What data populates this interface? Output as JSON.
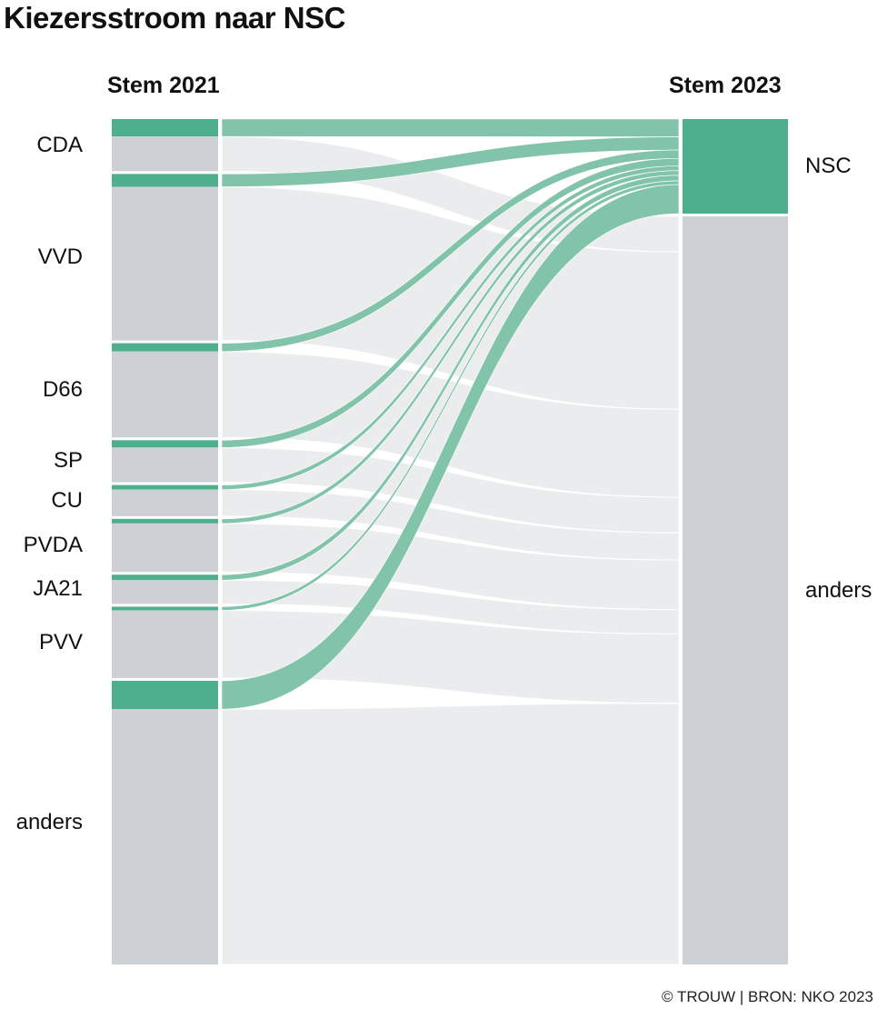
{
  "title": "Kiezersstroom naar NSC",
  "credit": "© TROUW | BRON: NKO 2023",
  "chart_data": {
    "type": "sankey",
    "source_column_label": "Stem 2021",
    "target_column_label": "Stem 2023",
    "sources": [
      {
        "name": "CDA",
        "to_nsc": 19,
        "to_anders": 38
      },
      {
        "name": "VVD",
        "to_nsc": 14,
        "to_anders": 168
      },
      {
        "name": "D66",
        "to_nsc": 9,
        "to_anders": 94
      },
      {
        "name": "SP",
        "to_nsc": 8,
        "to_anders": 38
      },
      {
        "name": "CU",
        "to_nsc": 5,
        "to_anders": 29
      },
      {
        "name": "PVDA",
        "to_nsc": 5,
        "to_anders": 53
      },
      {
        "name": "JA21",
        "to_nsc": 6,
        "to_anders": 26
      },
      {
        "name": "PVV",
        "to_nsc": 4,
        "to_anders": 74
      },
      {
        "name": "anders",
        "to_nsc": 31,
        "to_anders": 279
      }
    ],
    "targets": [
      "NSC",
      "anders"
    ],
    "colors": {
      "nsc": "#4daf8e",
      "nsc_flow": "#82c4a9",
      "anders_node": "#cdd0d4",
      "anders_flow": "#ebecee"
    }
  }
}
